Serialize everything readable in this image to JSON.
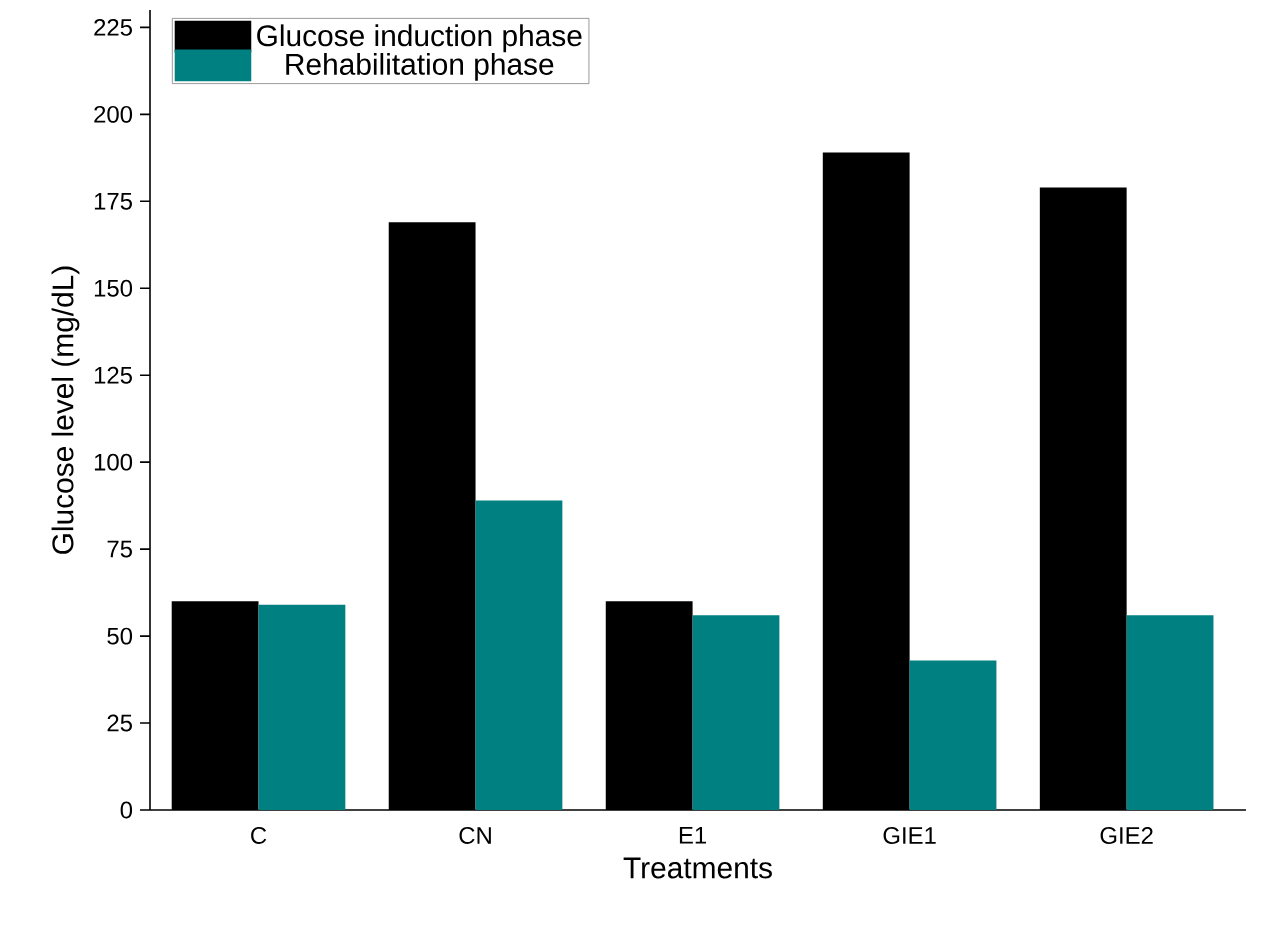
{
  "chart_data": {
    "type": "bar",
    "xlabel": "Treatments",
    "ylabel": "Glucose level (mg/dL)",
    "categories": [
      "C",
      "CN",
      "E1",
      "GIE1",
      "GIE2"
    ],
    "series": [
      {
        "name": "Glucose induction phase",
        "color": "#000000",
        "values": [
          60,
          169,
          60,
          189,
          179
        ]
      },
      {
        "name": "Rehabilitation phase",
        "color": "#008080",
        "values": [
          59,
          89,
          56,
          43,
          56
        ]
      }
    ],
    "ylim": [
      0,
      230
    ],
    "yticks": [
      0,
      25,
      50,
      75,
      100,
      125,
      150,
      175,
      200,
      225
    ],
    "grid": false,
    "legend": "top left"
  }
}
